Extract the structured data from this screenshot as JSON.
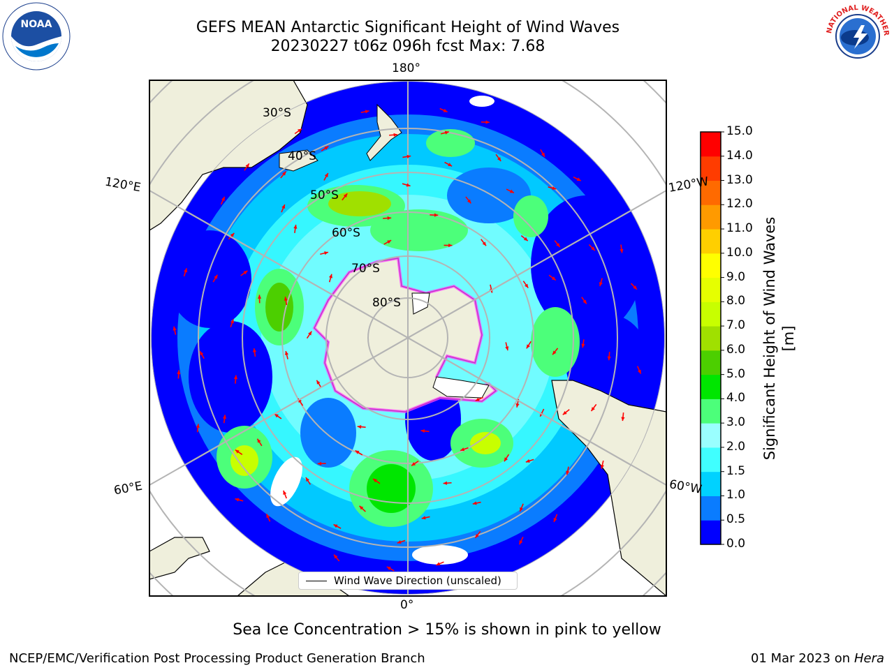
{
  "title_line1": "GEFS MEAN Antarctic Significant Height of Wind Waves",
  "title_line2": "20230227 t06z 096h fcst   Max: 7.68",
  "longitude_labels": {
    "top": "180°",
    "bottom": "0°",
    "left_upper": "120°E",
    "left_lower": "60°E",
    "right_upper": "120°W",
    "right_lower": "60°W"
  },
  "latitude_labels": [
    "30°S",
    "40°S",
    "50°S",
    "60°S",
    "70°S",
    "80°S"
  ],
  "legend_label": "Wind Wave Direction (unscaled)",
  "subtitle": "Sea Ice Concentration > 15% is shown in pink to yellow",
  "footer_left": "NCEP/EMC/Verification Post Processing Product Generation Branch",
  "footer_date": "01 Mar 2023 on",
  "footer_machine": "Hera",
  "logos": {
    "left": {
      "icon": "noaa-logo",
      "text": "NOAA"
    },
    "right": {
      "icon": "nws-logo",
      "text": "NATIONAL WEATHER SERVICE"
    }
  },
  "colorbar": {
    "label": "Significant Height of Wind Waves [m]",
    "ticks": [
      "0.0",
      "0.5",
      "1.0",
      "1.5",
      "2.0",
      "3.0",
      "4.0",
      "5.0",
      "6.0",
      "7.0",
      "8.0",
      "9.0",
      "10.0",
      "11.0",
      "12.0",
      "13.0",
      "14.0",
      "15.0"
    ],
    "colors": [
      "#0000ff",
      "#0a7cff",
      "#00d2ff",
      "#40ffff",
      "#9affff",
      "#4cff7a",
      "#00e600",
      "#4ccf00",
      "#a0e000",
      "#c8ff00",
      "#e6ff00",
      "#ffff00",
      "#ffcf00",
      "#ff9a00",
      "#ff6a00",
      "#ff3c00",
      "#ff0000"
    ]
  },
  "colors": {
    "land": "#efefdc",
    "ocean_base": "#0000ff",
    "grid": "#b4b4b4",
    "arrows": "#ff0000",
    "sea_ice": "#ff40ff"
  }
}
